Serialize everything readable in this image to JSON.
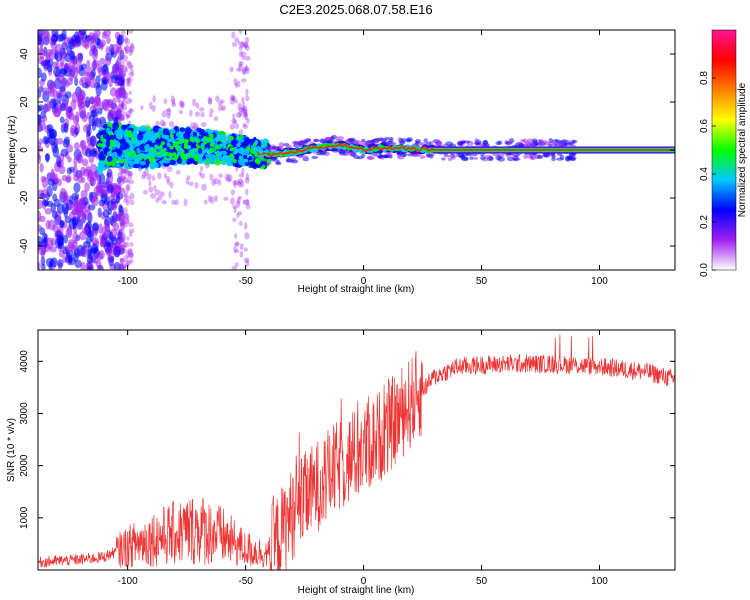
{
  "title": "C2E3.2025.068.07.58.E16",
  "chart_data": [
    {
      "type": "heatmap",
      "title": "C2E3.2025.068.07.58.E16",
      "xlabel": "Height of straight line (km)",
      "ylabel": "Frequency (Hz)",
      "xlim": [
        -138,
        132
      ],
      "ylim": [
        -50,
        50
      ],
      "xticks": [
        -100,
        -50,
        0,
        50,
        100
      ],
      "yticks": [
        -40,
        -20,
        0,
        20,
        40
      ],
      "colorbar": {
        "label": "Normalized spectral amplitude",
        "range": [
          0,
          1
        ],
        "ticks": [
          0.0,
          0.2,
          0.4,
          0.6,
          0.8
        ],
        "colors": [
          "#ffffff",
          "#a020f0",
          "#0000ff",
          "#00c8ff",
          "#00ff00",
          "#ffff00",
          "#ff8000",
          "#ff0000",
          "#ff1493"
        ]
      },
      "band_center_hz": [
        {
          "x": -110,
          "y": 2
        },
        {
          "x": -90,
          "y": 1
        },
        {
          "x": -70,
          "y": 2
        },
        {
          "x": -55,
          "y": 0
        },
        {
          "x": -40,
          "y": -2
        },
        {
          "x": -30,
          "y": -1
        },
        {
          "x": -20,
          "y": 1
        },
        {
          "x": -10,
          "y": 2
        },
        {
          "x": 0,
          "y": 0
        },
        {
          "x": 10,
          "y": 1
        },
        {
          "x": 30,
          "y": 0
        },
        {
          "x": 60,
          "y": 0
        },
        {
          "x": 90,
          "y": 0
        },
        {
          "x": 132,
          "y": 0
        }
      ]
    },
    {
      "type": "line",
      "xlabel": "Height of straight line (km)",
      "ylabel": "SNR (10 * v/v)",
      "xlim": [
        -138,
        132
      ],
      "ylim": [
        0,
        4600
      ],
      "xticks": [
        -100,
        -50,
        0,
        50,
        100
      ],
      "yticks": [
        1000,
        2000,
        3000,
        4000
      ],
      "color": "#ee3333",
      "series": [
        {
          "values": [
            {
              "x": -138,
              "y": 150
            },
            {
              "x": -120,
              "y": 200
            },
            {
              "x": -110,
              "y": 250
            },
            {
              "x": -100,
              "y": 450
            },
            {
              "x": -90,
              "y": 600
            },
            {
              "x": -80,
              "y": 700
            },
            {
              "x": -70,
              "y": 800
            },
            {
              "x": -60,
              "y": 650
            },
            {
              "x": -50,
              "y": 400
            },
            {
              "x": -40,
              "y": 300
            },
            {
              "x": -35,
              "y": 700
            },
            {
              "x": -30,
              "y": 1100
            },
            {
              "x": -20,
              "y": 1600
            },
            {
              "x": -10,
              "y": 2000
            },
            {
              "x": 0,
              "y": 2300
            },
            {
              "x": 10,
              "y": 2700
            },
            {
              "x": 20,
              "y": 3200
            },
            {
              "x": 30,
              "y": 3700
            },
            {
              "x": 40,
              "y": 3900
            },
            {
              "x": 60,
              "y": 3950
            },
            {
              "x": 80,
              "y": 3950
            },
            {
              "x": 100,
              "y": 3900
            },
            {
              "x": 120,
              "y": 3800
            },
            {
              "x": 132,
              "y": 3650
            }
          ]
        }
      ]
    }
  ]
}
